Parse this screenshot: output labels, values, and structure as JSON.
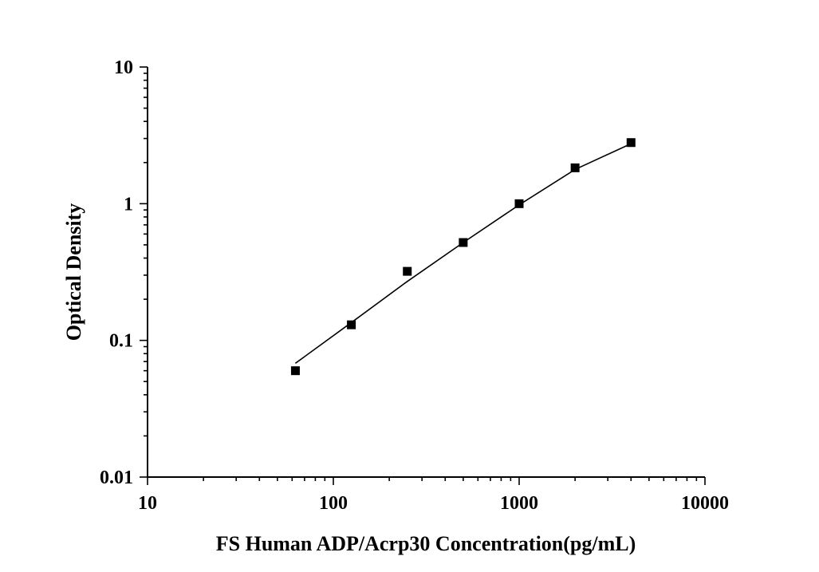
{
  "chart_data": {
    "type": "scatter",
    "xlabel": "FS Human ADP/Acrp30 Concentration(pg/mL)",
    "ylabel": "Optical Density",
    "x_scale": "log",
    "y_scale": "log",
    "xlim": [
      10,
      10000
    ],
    "ylim": [
      0.01,
      10
    ],
    "x_ticks": [
      "10",
      "100",
      "1000",
      "10000"
    ],
    "y_ticks": [
      "0.01",
      "0.1",
      "1",
      "10"
    ],
    "grid": false,
    "legend": "none",
    "series": [
      {
        "marker": "square",
        "color": "#000000",
        "points": [
          {
            "x": 62.5,
            "y": 0.06
          },
          {
            "x": 125,
            "y": 0.13
          },
          {
            "x": 250,
            "y": 0.32
          },
          {
            "x": 500,
            "y": 0.52
          },
          {
            "x": 1000,
            "y": 1.0
          },
          {
            "x": 2000,
            "y": 1.83
          },
          {
            "x": 4000,
            "y": 2.8
          }
        ]
      }
    ],
    "fit_curve": {
      "color": "#000000",
      "points": [
        {
          "x": 62.5,
          "y": 0.068
        },
        {
          "x": 125,
          "y": 0.135
        },
        {
          "x": 250,
          "y": 0.27
        },
        {
          "x": 500,
          "y": 0.52
        },
        {
          "x": 1000,
          "y": 0.98
        },
        {
          "x": 2000,
          "y": 1.78
        },
        {
          "x": 4000,
          "y": 2.75
        }
      ]
    }
  }
}
